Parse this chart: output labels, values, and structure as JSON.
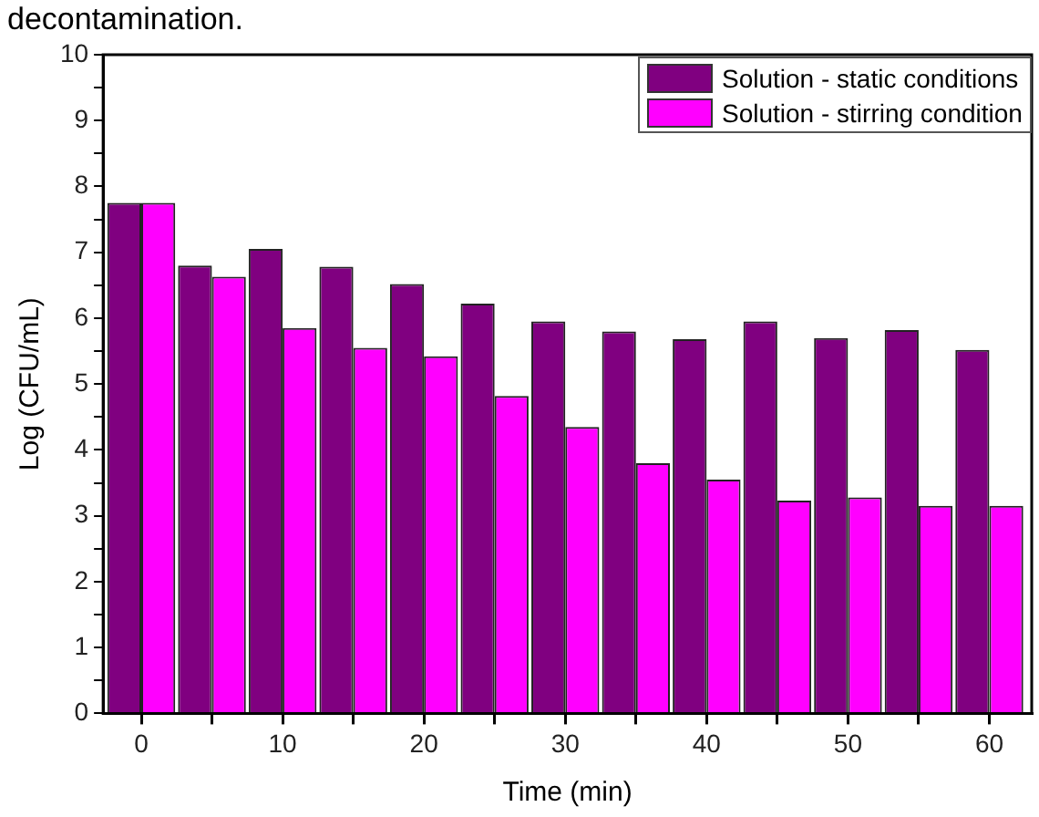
{
  "chart_data": {
    "type": "bar",
    "xlabel": "Time (min)",
    "ylabel": "Log (CFU/mL)",
    "annotations": [
      "decontamination."
    ],
    "x": [
      0,
      5,
      10,
      15,
      20,
      25,
      30,
      35,
      40,
      45,
      50,
      55,
      60
    ],
    "series": [
      {
        "name": "Solution - static conditions",
        "color": "#800080",
        "values": [
          7.75,
          6.8,
          7.05,
          6.78,
          6.52,
          6.22,
          5.95,
          5.8,
          5.68,
          5.95,
          5.7,
          5.82,
          5.52
        ]
      },
      {
        "name": "Solution - stirring condition",
        "color": "#ff00ff",
        "values": [
          7.75,
          6.63,
          5.85,
          5.55,
          5.42,
          4.82,
          4.35,
          3.8,
          3.55,
          3.23,
          3.28,
          3.15,
          3.15
        ]
      }
    ],
    "xlim": [
      -2.7,
      63
    ],
    "xticks": [
      0,
      {
        "value": 5,
        "label": null
      },
      10,
      {
        "value": 15,
        "label": null
      },
      20,
      {
        "value": 25,
        "label": null
      },
      30,
      {
        "value": 35,
        "label": null
      },
      40,
      {
        "value": 45,
        "label": null
      },
      50,
      {
        "value": 55,
        "label": null
      },
      60
    ],
    "ylim": [
      0,
      10
    ],
    "yticks": [
      0,
      {
        "value": 0.5,
        "label": null
      },
      1,
      {
        "value": 1.5,
        "label": null
      },
      2,
      {
        "value": 2.5,
        "label": null
      },
      3,
      {
        "value": 3.5,
        "label": null
      },
      4,
      {
        "value": 4.5,
        "label": null
      },
      5,
      {
        "value": 5.5,
        "label": null
      },
      6,
      {
        "value": 6.5,
        "label": null
      },
      7,
      {
        "value": 7.5,
        "label": null
      },
      8,
      {
        "value": 8.5,
        "label": null
      },
      9,
      {
        "value": 9.5,
        "label": null
      },
      10
    ],
    "grid": false,
    "legend": "top right"
  }
}
